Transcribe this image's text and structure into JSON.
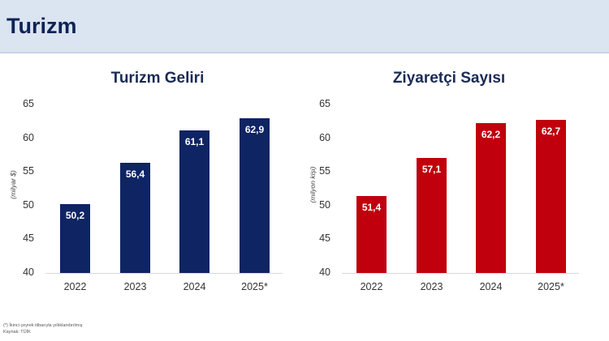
{
  "header": {
    "title": "Turizm"
  },
  "colors": {
    "navy": "#0f2463",
    "red": "#c0000d",
    "header_bg": "#dbe4f1"
  },
  "footnotes": {
    "note": "(*) İkinci çeyrek itibarıyla yıllıklandırılmış",
    "source": "Kaynak: TÜİK"
  },
  "chart_data": [
    {
      "type": "bar",
      "title": "Turizm Geliri",
      "ylabel": "(milyar $)",
      "xlabel": "",
      "categories": [
        "2022",
        "2023",
        "2024",
        "2025*"
      ],
      "values": [
        50.2,
        56.4,
        61.1,
        62.9
      ],
      "value_labels": [
        "50,2",
        "56,4",
        "61,1",
        "62,9"
      ],
      "yticks": [
        "65",
        "60",
        "55",
        "50",
        "45",
        "40"
      ],
      "ylim": [
        40,
        65
      ],
      "color": "#0f2463",
      "grid": false
    },
    {
      "type": "bar",
      "title": "Ziyaretçi Sayısı",
      "ylabel": "(milyon kişi)",
      "xlabel": "",
      "categories": [
        "2022",
        "2023",
        "2024",
        "2025*"
      ],
      "values": [
        51.4,
        57.1,
        62.2,
        62.7
      ],
      "value_labels": [
        "51,4",
        "57,1",
        "62,2",
        "62,7"
      ],
      "yticks": [
        "65",
        "60",
        "55",
        "50",
        "45",
        "40"
      ],
      "ylim": [
        40,
        65
      ],
      "color": "#c0000d",
      "grid": false
    }
  ]
}
